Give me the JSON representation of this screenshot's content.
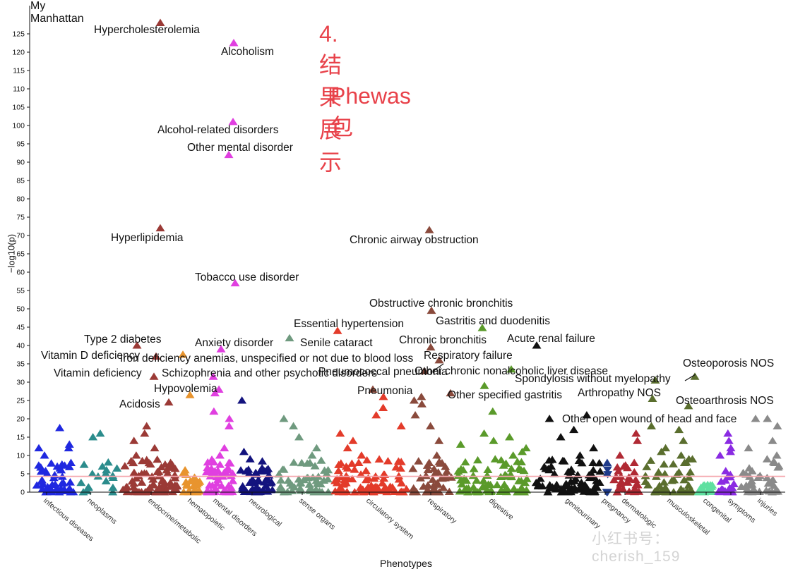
{
  "header": {
    "chart_title": "My Manhattan",
    "overlay_line1": "4.结果展示",
    "overlay_line2": "Phewas包",
    "watermark": "小红书号：cherish_159"
  },
  "chart_data": {
    "type": "scatter",
    "title": "My Manhattan",
    "xlabel": "Phenotypes",
    "ylabel": "−log10(p)",
    "ylim": [
      0,
      128
    ],
    "yticks": [
      0,
      5,
      10,
      15,
      20,
      25,
      30,
      35,
      40,
      45,
      50,
      55,
      60,
      65,
      70,
      75,
      80,
      85,
      90,
      95,
      100,
      105,
      110,
      115,
      120,
      125
    ],
    "significance_line": {
      "value": 4.3,
      "color": "#f4a6ad"
    },
    "grid": false,
    "marker": "triangle",
    "categories": [
      {
        "label": "infectious diseases",
        "color": "#1f28e0"
      },
      {
        "label": "neoplasms",
        "color": "#2b8c8c"
      },
      {
        "label": "endocrine/metabolic",
        "color": "#9b3a36"
      },
      {
        "label": "hematopoietic",
        "color": "#e8942e"
      },
      {
        "label": "mental disorders",
        "color": "#e03fe0"
      },
      {
        "label": "neurological",
        "color": "#13137e"
      },
      {
        "label": "sense organs",
        "color": "#6f9a7f"
      },
      {
        "label": "circulatory system",
        "color": "#e33b2a"
      },
      {
        "label": "respiratory",
        "color": "#8a4a3c"
      },
      {
        "label": "digestive",
        "color": "#5a9a2a"
      },
      {
        "label": "genitourinary",
        "color": "#111111"
      },
      {
        "label": "pregnancy",
        "color": "#1e3a8a"
      },
      {
        "label": "dermatologic",
        "color": "#b02a34"
      },
      {
        "label": "musculoskeletal",
        "color": "#5a6e2e"
      },
      {
        "label": "congenital",
        "color": "#5fe0a0"
      },
      {
        "label": "symptoms",
        "color": "#8a2be2"
      },
      {
        "label": "injuries",
        "color": "#8a8a8a"
      }
    ],
    "annotations": [
      {
        "label": "Hypercholesterolemia",
        "category": 2,
        "value": 128.0
      },
      {
        "label": "Alcoholism",
        "category": 4,
        "value": 122.5
      },
      {
        "label": "Alcohol-related disorders",
        "category": 4,
        "value": 101.0
      },
      {
        "label": "Other mental disorder",
        "category": 4,
        "value": 92.0
      },
      {
        "label": "Hyperlipidemia",
        "category": 2,
        "value": 72.0
      },
      {
        "label": "Chronic airway obstruction",
        "category": 8,
        "value": 71.5
      },
      {
        "label": "Tobacco use disorder",
        "category": 4,
        "value": 57.0
      },
      {
        "label": "Obstructive chronic bronchitis",
        "category": 8,
        "value": 49.5
      },
      {
        "label": "Essential hypertension",
        "category": 7,
        "value": 44.0
      },
      {
        "label": "Gastritis and duodenitis",
        "category": 9,
        "value": 44.8
      },
      {
        "label": "Type 2 diabetes",
        "category": 2,
        "value": 40.0
      },
      {
        "label": "Anxiety disorder",
        "category": 4,
        "value": 39.0
      },
      {
        "label": "Senile cataract",
        "category": 6,
        "value": 42.0
      },
      {
        "label": "Chronic bronchitis",
        "category": 8,
        "value": 39.5
      },
      {
        "label": "Acute renal failure",
        "category": 10,
        "value": 40.0
      },
      {
        "label": "Vitamin D deficiency",
        "category": 2,
        "value": 37.0
      },
      {
        "label": "Iron deficiency anemias, unspecified or not due to blood loss",
        "category": 3,
        "value": 37.5
      },
      {
        "label": "Respiratory failure",
        "category": 8,
        "value": 36.0
      },
      {
        "label": "Osteoporosis NOS",
        "category": 13,
        "value": 31.5
      },
      {
        "label": "Vitamin deficiency",
        "category": 2,
        "value": 31.5
      },
      {
        "label": "Schizophrenia and other psychotic disorders",
        "category": 4,
        "value": 31.5
      },
      {
        "label": "Pneumococcal pneumonia",
        "category": 8,
        "value": 33.0
      },
      {
        "label": "Other chronic nonalcoholic liver disease",
        "category": 9,
        "value": 33.5
      },
      {
        "label": "Spondylosis without myelopathy",
        "category": 13,
        "value": 30.5
      },
      {
        "label": "Hypovolemia",
        "category": 3,
        "value": 26.5
      },
      {
        "label": "Pneumonia",
        "category": 8,
        "value": 28.0
      },
      {
        "label": "Other specified gastritis",
        "category": 9,
        "value": 29.0
      },
      {
        "label": "Arthropathy NOS",
        "category": 13,
        "value": 25.5
      },
      {
        "label": "Acidosis",
        "category": 2,
        "value": 24.5
      },
      {
        "label": "Osteoarthrosis NOS",
        "category": 13,
        "value": 23.5
      },
      {
        "label": "Other open wound of head and face",
        "category": 16,
        "value": 20.0
      }
    ]
  }
}
